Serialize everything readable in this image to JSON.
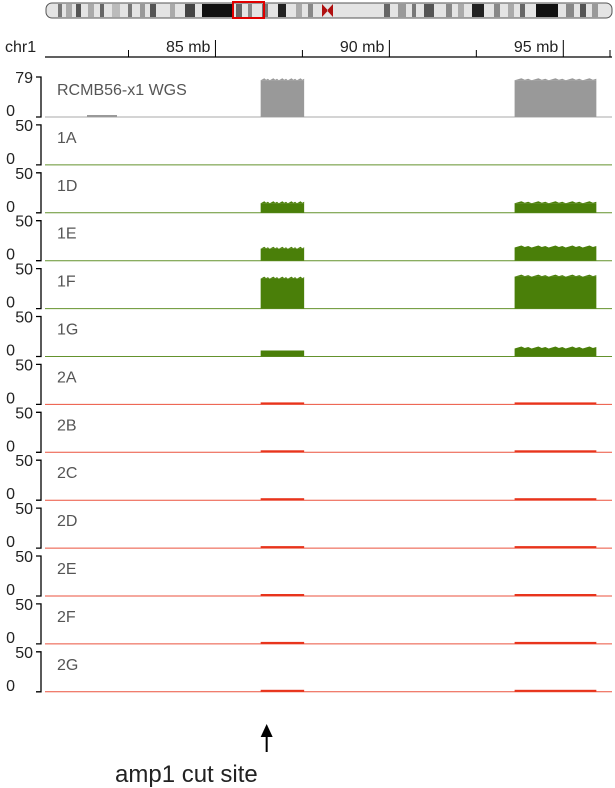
{
  "chart_data": {
    "type": "area",
    "chromosome": "chr1",
    "x_unit": "mb",
    "xlim": [
      80.1,
      96.4
    ],
    "x_ticks": [
      {
        "value": 85,
        "label": "85 mb"
      },
      {
        "value": 90,
        "label": "90 mb"
      },
      {
        "value": 95,
        "label": "95 mb"
      }
    ],
    "ideogram_highlight": "red-box",
    "amplified_regions": [
      {
        "start": 86.3,
        "end": 87.55
      },
      {
        "start": 93.6,
        "end": 95.95
      }
    ],
    "tracks": [
      {
        "label": "RCMB56-x1 WGS",
        "ymax": 79,
        "ymin": 0,
        "color": "#999999",
        "levels": [
          0.92,
          0.92
        ]
      },
      {
        "label": "1A",
        "ymax": 50,
        "ymin": 0,
        "color": "#4a7f09",
        "levels": [
          0.0,
          0.0
        ]
      },
      {
        "label": "1D",
        "ymax": 50,
        "ymin": 0,
        "color": "#4a7f09",
        "levels": [
          0.24,
          0.24
        ]
      },
      {
        "label": "1E",
        "ymax": 50,
        "ymin": 0,
        "color": "#4a7f09",
        "levels": [
          0.3,
          0.33
        ]
      },
      {
        "label": "1F",
        "ymax": 50,
        "ymin": 0,
        "color": "#4a7f09",
        "levels": [
          0.75,
          0.8
        ]
      },
      {
        "label": "1G",
        "ymax": 50,
        "ymin": 0,
        "color": "#4a7f09",
        "levels": [
          0.15,
          0.2
        ]
      },
      {
        "label": "2A",
        "ymax": 50,
        "ymin": 0,
        "color": "#e8341c",
        "levels": [
          0.03,
          0.03
        ]
      },
      {
        "label": "2B",
        "ymax": 50,
        "ymin": 0,
        "color": "#e8341c",
        "levels": [
          0.04,
          0.04
        ]
      },
      {
        "label": "2C",
        "ymax": 50,
        "ymin": 0,
        "color": "#e8341c",
        "levels": [
          0.03,
          0.03
        ]
      },
      {
        "label": "2D",
        "ymax": 50,
        "ymin": 0,
        "color": "#e8341c",
        "levels": [
          0.03,
          0.03
        ]
      },
      {
        "label": "2E",
        "ymax": 50,
        "ymin": 0,
        "color": "#e8341c",
        "levels": [
          0.03,
          0.03
        ]
      },
      {
        "label": "2F",
        "ymax": 50,
        "ymin": 0,
        "color": "#e8341c",
        "levels": [
          0.03,
          0.03
        ]
      },
      {
        "label": "2G",
        "ymax": 50,
        "ymin": 0,
        "color": "#e8341c",
        "levels": [
          0.03,
          0.03
        ]
      }
    ],
    "annotations": [
      {
        "text": "amp1 cut site",
        "x": 86.3
      }
    ]
  }
}
